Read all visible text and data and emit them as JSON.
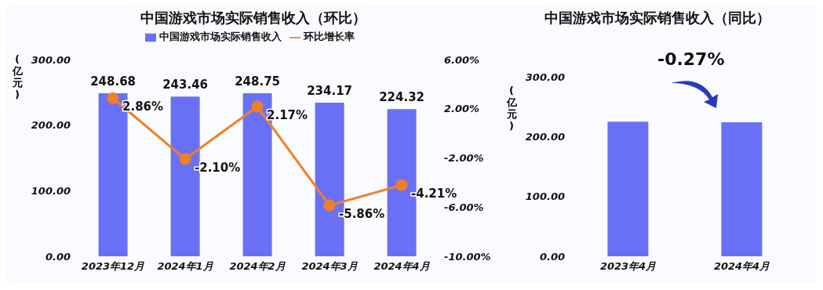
{
  "chart_data": [
    {
      "type": "bar",
      "title": "中国游戏市场实际销售收入（环比）",
      "ylabel": "(亿元)",
      "categories": [
        "2023年12月",
        "2024年1月",
        "2024年2月",
        "2024年3月",
        "2024年4月"
      ],
      "series": [
        {
          "name": "中国游戏市场实际销售收入",
          "color": "#6a70f5",
          "values": [
            248.68,
            243.46,
            248.75,
            234.17,
            224.32
          ],
          "value_labels": [
            "248.68",
            "243.46",
            "248.75",
            "234.17",
            "224.32"
          ]
        },
        {
          "name": "环比增长率",
          "type": "line",
          "axis": "y2",
          "color": "#f07f2a",
          "values": [
            2.86,
            -2.1,
            2.17,
            -5.86,
            -4.21
          ],
          "value_labels": [
            "2.86%",
            "-2.10%",
            "2.17%",
            "-5.86%",
            "-4.21%"
          ]
        }
      ],
      "ylim": [
        0,
        300
      ],
      "yticks": [
        {
          "value": 0,
          "label": "0.00"
        },
        {
          "value": 100,
          "label": "100.00"
        },
        {
          "value": 200,
          "label": "200.00"
        },
        {
          "value": 300,
          "label": "300.00"
        }
      ],
      "y2lim": [
        -10,
        6
      ],
      "y2ticks": [
        {
          "value": -10,
          "label": "-10.00%"
        },
        {
          "value": -6,
          "label": "-6.00%"
        },
        {
          "value": -2,
          "label": "-2.00%"
        },
        {
          "value": 2,
          "label": "2.00%"
        },
        {
          "value": 6,
          "label": "6.00%"
        }
      ],
      "legend": "top",
      "marker": "circle"
    },
    {
      "type": "bar",
      "title": "中国游戏市场实际销售收入（同比）",
      "ylabel": "(亿元)",
      "categories": [
        "2023年4月",
        "2024年4月"
      ],
      "series": [
        {
          "color": "#6a70f5",
          "values": [
            225,
            224
          ]
        }
      ],
      "ylim": [
        0,
        300
      ],
      "yticks": [
        {
          "value": 0,
          "label": "0.00"
        },
        {
          "value": 100,
          "label": "100.00"
        },
        {
          "value": 200,
          "label": "200.00"
        },
        {
          "value": 300,
          "label": "300.00"
        }
      ],
      "annotations": [
        "-0.27%"
      ]
    }
  ]
}
